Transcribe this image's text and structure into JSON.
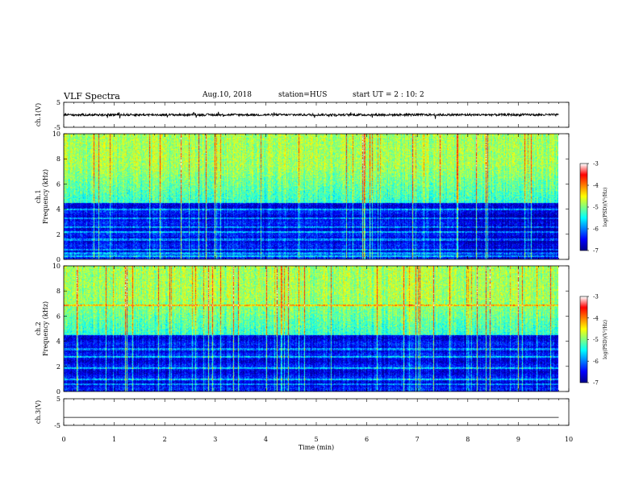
{
  "header": {
    "title": "VLF Spectra",
    "date": "Aug.10, 2018",
    "station": "station=HUS",
    "start": "start  UT =   2 : 10: 2"
  },
  "chart_data": [
    {
      "type": "line",
      "panel": "ch1-waveform",
      "ylabel": "ch.1(V)",
      "yticks": [
        "5",
        "-5"
      ],
      "ylim": [
        -5,
        5
      ],
      "baseline": 0,
      "xlim": [
        0,
        10
      ]
    },
    {
      "type": "heatmap",
      "panel": "ch1-spectrogram",
      "ylabel": "ch.1\nFrequency (kHz)",
      "ylim": [
        0,
        10
      ],
      "yticks": [
        "0",
        "2",
        "4",
        "6",
        "8",
        "10"
      ],
      "xlim": [
        0,
        10
      ],
      "data_end_x": 9.8,
      "colorbar": {
        "label": "log(PSD)(V²/Hz)",
        "ticks": [
          "-3",
          "-4",
          "-5",
          "-6",
          "-7"
        ],
        "range": [
          -7,
          -3
        ],
        "colors": [
          "#00008f",
          "#0000ff",
          "#0080ff",
          "#00ffff",
          "#80ff80",
          "#ffff00",
          "#ff8000",
          "#ff0000",
          "#ffffff"
        ]
      }
    },
    {
      "type": "heatmap",
      "panel": "ch2-spectrogram",
      "ylabel": "ch.2\nFrequency (kHz)",
      "ylim": [
        0,
        10
      ],
      "yticks": [
        "0",
        "2",
        "4",
        "6",
        "8",
        "10"
      ],
      "xlim": [
        0,
        10
      ],
      "data_end_x": 9.8,
      "colorbar": {
        "label": "log(PSD)(V²/Hz)",
        "ticks": [
          "-3",
          "-4",
          "-5",
          "-6",
          "-7"
        ],
        "range": [
          -7,
          -3
        ],
        "colors": [
          "#00008f",
          "#0000ff",
          "#0080ff",
          "#00ffff",
          "#80ff80",
          "#ffff00",
          "#ff8000",
          "#ff0000",
          "#ffffff"
        ]
      }
    },
    {
      "type": "line",
      "panel": "ch3-waveform",
      "ylabel": "ch.3(V)",
      "yticks": [
        "5",
        "-5"
      ],
      "ylim": [
        -5,
        5
      ],
      "baseline": -2,
      "xlim": [
        0,
        10
      ]
    }
  ],
  "xaxis": {
    "label": "Time (min)",
    "ticks": [
      "0",
      "1",
      "2",
      "3",
      "4",
      "5",
      "6",
      "7",
      "8",
      "9",
      "10"
    ],
    "range": [
      0,
      10
    ]
  }
}
